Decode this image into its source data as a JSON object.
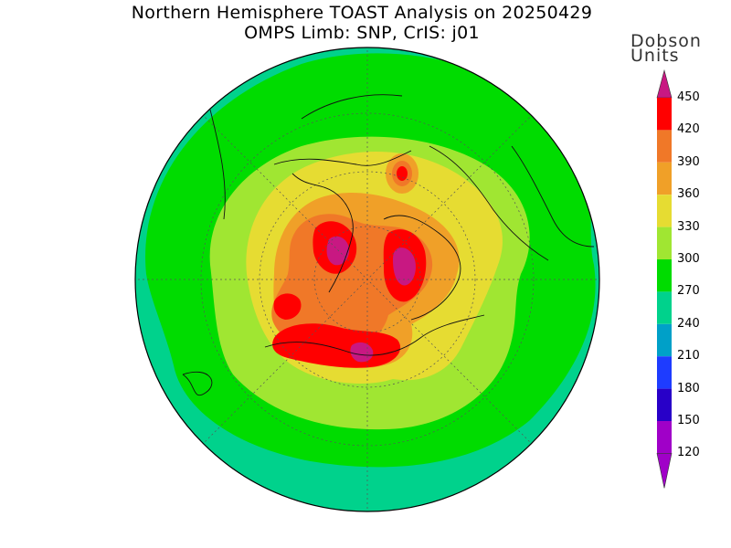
{
  "title": {
    "line1": "Northern Hemisphere TOAST Analysis on 20250429",
    "line2": "OMPS Limb: SNP, CrIS: j01"
  },
  "colorbar": {
    "units_line1": "Dobson",
    "units_line2": "Units",
    "levels": [
      {
        "value": "450",
        "color": "#c81882"
      },
      {
        "value": "420",
        "color": "#ff0000"
      },
      {
        "value": "390",
        "color": "#f07828"
      },
      {
        "value": "360",
        "color": "#f0a028"
      },
      {
        "value": "330",
        "color": "#e6dc32"
      },
      {
        "value": "300",
        "color": "#a0e632"
      },
      {
        "value": "270",
        "color": "#00dc00"
      },
      {
        "value": "240",
        "color": "#00d28c"
      },
      {
        "value": "210",
        "color": "#00a0c8"
      },
      {
        "value": "180",
        "color": "#1e3cff"
      },
      {
        "value": "150",
        "color": "#2800c8"
      },
      {
        "value": "120",
        "color": "#a000c8"
      }
    ],
    "top_arrow_color": "#c81882",
    "bottom_arrow_color": "#a000c8"
  },
  "map": {
    "projection": "north-polar-stereographic",
    "ocean_edge_color": "#00d28c",
    "outer_color": "#00dc00",
    "ring_color": "#a0e632",
    "mid_color": "#e6dc32",
    "core_colors": [
      "#f0a028",
      "#f07828",
      "#ff0000",
      "#c81882"
    ]
  }
}
